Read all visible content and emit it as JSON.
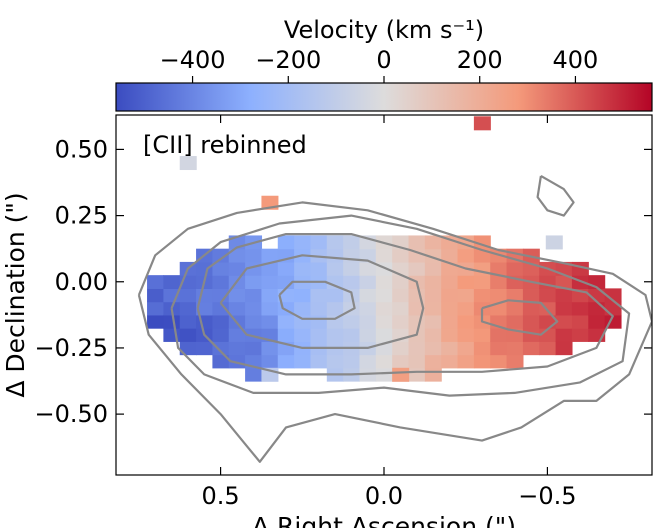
{
  "chart_data": {
    "type": "heatmap",
    "title": "[CII] rebinned",
    "xlabel": "Δ Right Ascension (\")",
    "ylabel": "Δ Declination (\")",
    "xlim": [
      0.82,
      -0.82
    ],
    "ylim": [
      -0.73,
      0.63
    ],
    "xticks": [
      0.5,
      0.0,
      -0.5
    ],
    "xtick_labels": [
      "0.5",
      "0.0",
      "−0.5"
    ],
    "yticks": [
      0.5,
      0.25,
      0.0,
      -0.25,
      -0.5
    ],
    "ytick_labels": [
      "0.50",
      "0.25",
      "0.00",
      "−0.25",
      "−0.50"
    ],
    "colorbar": {
      "label": "Velocity (km s⁻¹)",
      "range": [
        -560,
        560
      ],
      "ticks": [
        -400,
        -200,
        0,
        200,
        400
      ],
      "tick_labels": [
        "−400",
        "−200",
        "0",
        "200",
        "400"
      ],
      "colormap": "coolwarm",
      "low_color": "#3b4cc0",
      "mid_color": "#dddddd",
      "high_color": "#b40426"
    },
    "pixel_size_arcsec": 0.05,
    "velocity_model": {
      "grid_x_range": [
        0.7,
        -0.75
      ],
      "grid_y_range": [
        -0.4,
        0.35
      ],
      "note": "approximate per-pixel velocity: blue (approaching) on the east/left side, red (receding) on the west/right side"
    },
    "contours": [
      {
        "level": 1,
        "points": [
          [
            0.75,
            -0.05
          ],
          [
            0.7,
            0.1
          ],
          [
            0.6,
            0.2
          ],
          [
            0.45,
            0.26
          ],
          [
            0.25,
            0.3
          ],
          [
            0.05,
            0.27
          ],
          [
            -0.15,
            0.2
          ],
          [
            -0.35,
            0.12
          ],
          [
            -0.55,
            0.07
          ],
          [
            -0.7,
            0.03
          ],
          [
            -0.8,
            -0.05
          ],
          [
            -0.82,
            -0.15
          ],
          [
            -0.75,
            -0.35
          ],
          [
            -0.65,
            -0.45
          ],
          [
            -0.55,
            -0.45
          ],
          [
            -0.42,
            -0.55
          ],
          [
            -0.3,
            -0.6
          ],
          [
            -0.05,
            -0.55
          ],
          [
            0.15,
            -0.5
          ],
          [
            0.3,
            -0.55
          ],
          [
            0.38,
            -0.68
          ],
          [
            0.42,
            -0.62
          ],
          [
            0.5,
            -0.5
          ],
          [
            0.62,
            -0.35
          ],
          [
            0.72,
            -0.2
          ],
          [
            0.75,
            -0.05
          ]
        ]
      },
      {
        "level": 2,
        "points": [
          [
            0.65,
            -0.1
          ],
          [
            0.6,
            0.05
          ],
          [
            0.5,
            0.15
          ],
          [
            0.32,
            0.22
          ],
          [
            0.1,
            0.25
          ],
          [
            -0.1,
            0.2
          ],
          [
            -0.3,
            0.12
          ],
          [
            -0.5,
            0.05
          ],
          [
            -0.65,
            -0.02
          ],
          [
            -0.75,
            -0.12
          ],
          [
            -0.73,
            -0.3
          ],
          [
            -0.6,
            -0.38
          ],
          [
            -0.4,
            -0.42
          ],
          [
            -0.2,
            -0.43
          ],
          [
            0.0,
            -0.4
          ],
          [
            0.2,
            -0.42
          ],
          [
            0.4,
            -0.42
          ],
          [
            0.55,
            -0.35
          ],
          [
            0.63,
            -0.25
          ],
          [
            0.65,
            -0.1
          ]
        ]
      },
      {
        "level": 3,
        "points": [
          [
            0.57,
            -0.1
          ],
          [
            0.54,
            0.05
          ],
          [
            0.45,
            0.13
          ],
          [
            0.3,
            0.18
          ],
          [
            0.1,
            0.18
          ],
          [
            -0.08,
            0.12
          ],
          [
            -0.25,
            0.05
          ],
          [
            -0.45,
            0.0
          ],
          [
            -0.62,
            -0.04
          ],
          [
            -0.7,
            -0.13
          ],
          [
            -0.65,
            -0.25
          ],
          [
            -0.5,
            -0.32
          ],
          [
            -0.3,
            -0.34
          ],
          [
            -0.1,
            -0.34
          ],
          [
            0.1,
            -0.35
          ],
          [
            0.3,
            -0.35
          ],
          [
            0.47,
            -0.3
          ],
          [
            0.55,
            -0.2
          ],
          [
            0.57,
            -0.1
          ]
        ]
      },
      {
        "level": 4,
        "points": [
          [
            0.5,
            -0.08
          ],
          [
            0.42,
            0.05
          ],
          [
            0.25,
            0.1
          ],
          [
            0.05,
            0.08
          ],
          [
            -0.1,
            0.0
          ],
          [
            -0.12,
            -0.1
          ],
          [
            -0.1,
            -0.2
          ],
          [
            0.05,
            -0.25
          ],
          [
            0.25,
            -0.25
          ],
          [
            0.42,
            -0.2
          ],
          [
            0.5,
            -0.08
          ]
        ]
      },
      {
        "level": 5,
        "points": [
          [
            0.32,
            -0.05
          ],
          [
            0.28,
            0.0
          ],
          [
            0.18,
            0.0
          ],
          [
            0.1,
            -0.04
          ],
          [
            0.09,
            -0.1
          ],
          [
            0.15,
            -0.14
          ],
          [
            0.25,
            -0.14
          ],
          [
            0.31,
            -0.1
          ],
          [
            0.32,
            -0.05
          ]
        ]
      },
      {
        "level": 5,
        "points": [
          [
            -0.3,
            -0.1
          ],
          [
            -0.38,
            -0.07
          ],
          [
            -0.48,
            -0.08
          ],
          [
            -0.53,
            -0.15
          ],
          [
            -0.48,
            -0.2
          ],
          [
            -0.38,
            -0.18
          ],
          [
            -0.3,
            -0.15
          ],
          [
            -0.3,
            -0.1
          ]
        ]
      },
      {
        "level": 1,
        "points": [
          [
            -0.48,
            0.4
          ],
          [
            -0.55,
            0.35
          ],
          [
            -0.58,
            0.3
          ],
          [
            -0.55,
            0.25
          ],
          [
            -0.5,
            0.27
          ],
          [
            -0.47,
            0.32
          ],
          [
            -0.48,
            0.4
          ]
        ]
      }
    ],
    "contour_color": "#888888"
  }
}
